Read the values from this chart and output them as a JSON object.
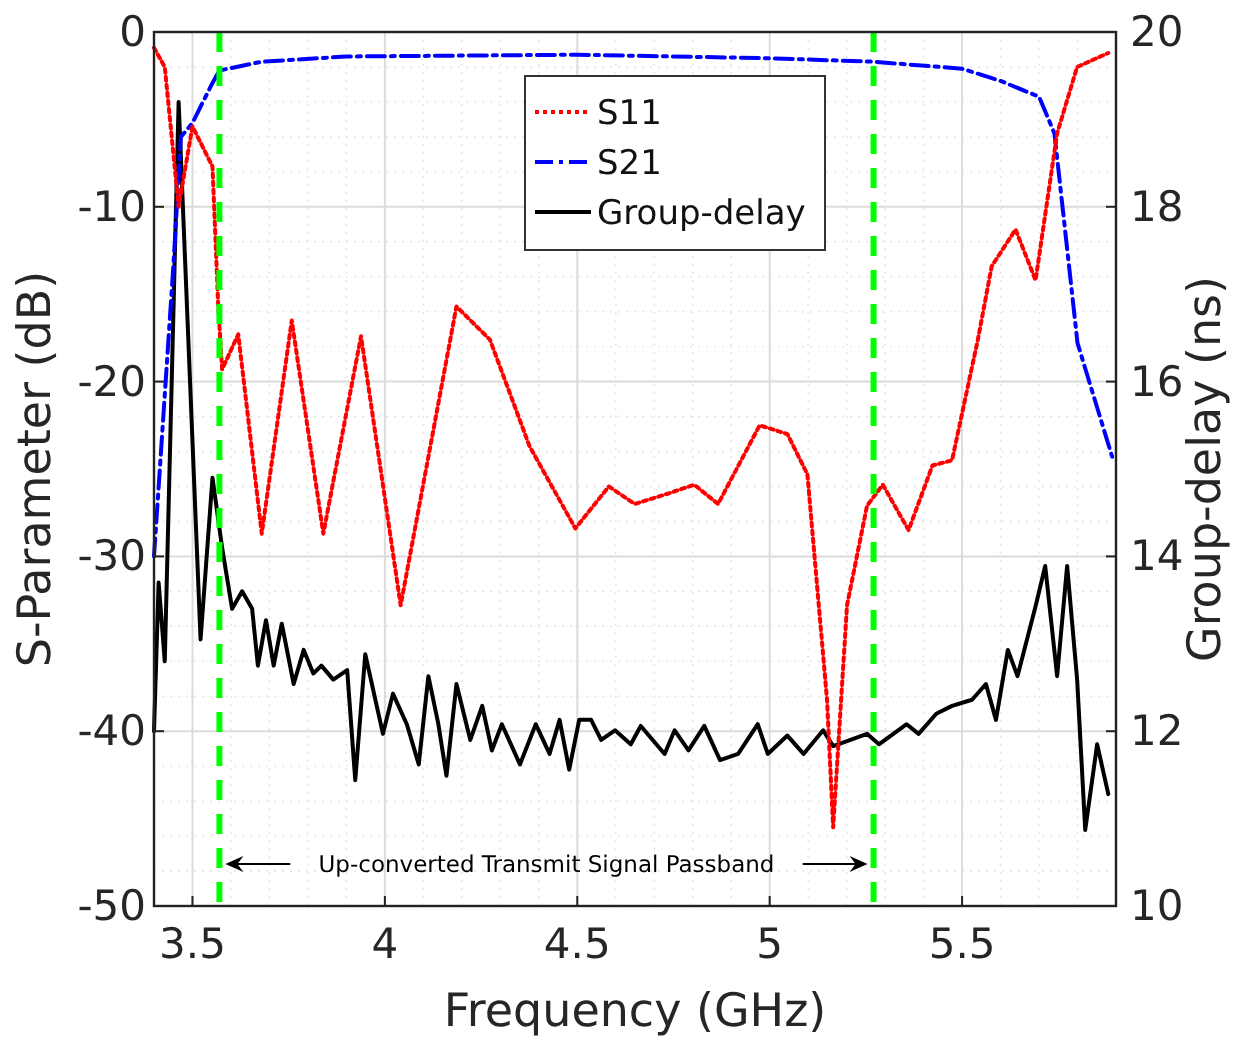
{
  "chart_data": {
    "type": "line",
    "xlabel": "Frequency (GHz)",
    "ylabel": "S-Parameter (dB)",
    "y2label": "Group-delay (ns)",
    "xlim": [
      3.4,
      5.9
    ],
    "xticks": [
      3.5,
      4,
      4.5,
      5,
      5.5
    ],
    "ylim": [
      -50,
      0
    ],
    "yticks": [
      -50,
      -40,
      -30,
      -20,
      -10,
      0
    ],
    "y2lim": [
      10,
      20
    ],
    "y2ticks": [
      10,
      12,
      14,
      16,
      18,
      20
    ],
    "grid": true,
    "legend": "top",
    "marker": "none",
    "ref_lines": [
      {
        "axis": "x",
        "value": 3.57,
        "color": "#00ff00",
        "line_style": "dashed"
      },
      {
        "axis": "x",
        "value": 5.27,
        "color": "#00ff00",
        "line_style": "dashed"
      }
    ],
    "annotations": [
      "Up-converted Transmit Signal Passband"
    ],
    "series": [
      {
        "name": "S11",
        "color": "#ff0000",
        "line_style": "dotted",
        "x": [
          3.4,
          3.428,
          3.464,
          3.5,
          3.552,
          3.567,
          3.577,
          3.619,
          3.68,
          3.758,
          3.84,
          3.938,
          4.041,
          4.186,
          4.273,
          4.376,
          4.495,
          4.582,
          4.649,
          4.737,
          4.804,
          4.866,
          4.974,
          5.046,
          5.098,
          5.149,
          5.165,
          5.201,
          5.253,
          5.294,
          5.361,
          5.423,
          5.474,
          5.541,
          5.577,
          5.639,
          5.691,
          5.747,
          5.799,
          5.88
        ],
        "values": [
          -0.9,
          -2,
          -10,
          -5.4,
          -7.7,
          -15.7,
          -19.3,
          -17.3,
          -28.7,
          -16.5,
          -28.7,
          -17.4,
          -32.8,
          -15.7,
          -17.6,
          -23.7,
          -28.4,
          -26,
          -27,
          -26.4,
          -25.9,
          -27,
          -22.5,
          -23,
          -25.3,
          -38.2,
          -45.5,
          -32.8,
          -27.1,
          -25.9,
          -28.5,
          -24.8,
          -24.5,
          -17.6,
          -13.4,
          -11.3,
          -14.2,
          -5.8,
          -2,
          -1.2
        ]
      },
      {
        "name": "S21",
        "color": "#0000ff",
        "line_style": "dashed",
        "x": [
          3.4,
          3.45,
          3.47,
          3.5,
          3.55,
          3.57,
          3.68,
          3.9,
          4.5,
          5.0,
          5.27,
          5.5,
          5.6,
          5.7,
          5.74,
          5.8,
          5.89
        ],
        "values": [
          -30,
          -13.5,
          -6,
          -5.2,
          -3,
          -2.2,
          -1.7,
          -1.4,
          -1.3,
          -1.5,
          -1.7,
          -2.1,
          -2.8,
          -3.7,
          -5.8,
          -17.8,
          -24.3
        ]
      },
      {
        "name": "Group-delay",
        "color": "#000000",
        "line_style": "solid",
        "axis": "y2",
        "x": [
          3.4,
          3.412,
          3.428,
          3.464,
          3.521,
          3.552,
          3.577,
          3.603,
          3.629,
          3.655,
          3.67,
          3.691,
          3.711,
          3.732,
          3.763,
          3.789,
          3.814,
          3.835,
          3.866,
          3.902,
          3.923,
          3.949,
          3.995,
          4.021,
          4.057,
          4.088,
          4.113,
          4.139,
          4.16,
          4.186,
          4.222,
          4.253,
          4.278,
          4.304,
          4.351,
          4.392,
          4.428,
          4.454,
          4.479,
          4.505,
          4.536,
          4.562,
          4.598,
          4.639,
          4.665,
          4.727,
          4.753,
          4.789,
          4.83,
          4.871,
          4.918,
          4.969,
          4.995,
          5.046,
          5.088,
          5.139,
          5.165,
          5.253,
          5.284,
          5.356,
          5.387,
          5.433,
          5.474,
          5.526,
          5.562,
          5.588,
          5.619,
          5.644,
          5.691,
          5.716,
          5.747,
          5.773,
          5.799,
          5.82,
          5.851,
          5.88
        ],
        "values": [
          12.0,
          13.7,
          12.8,
          19.2,
          13.05,
          14.9,
          14.1,
          13.4,
          13.6,
          13.4,
          12.75,
          13.27,
          12.75,
          13.23,
          12.54,
          12.93,
          12.66,
          12.75,
          12.59,
          12.7,
          11.44,
          12.88,
          11.97,
          12.43,
          12.08,
          11.62,
          12.63,
          12.08,
          11.49,
          12.54,
          11.9,
          12.29,
          11.78,
          12.08,
          11.62,
          12.08,
          11.74,
          12.13,
          11.56,
          12.13,
          12.13,
          11.9,
          12.01,
          11.85,
          12.06,
          11.74,
          12.01,
          11.78,
          12.06,
          11.67,
          11.74,
          12.08,
          11.74,
          11.95,
          11.74,
          12.01,
          11.83,
          11.97,
          11.85,
          12.08,
          11.97,
          12.2,
          12.29,
          12.36,
          12.54,
          12.13,
          12.93,
          12.63,
          13.43,
          13.89,
          12.63,
          13.89,
          12.59,
          10.87,
          11.85,
          11.28
        ]
      }
    ]
  }
}
